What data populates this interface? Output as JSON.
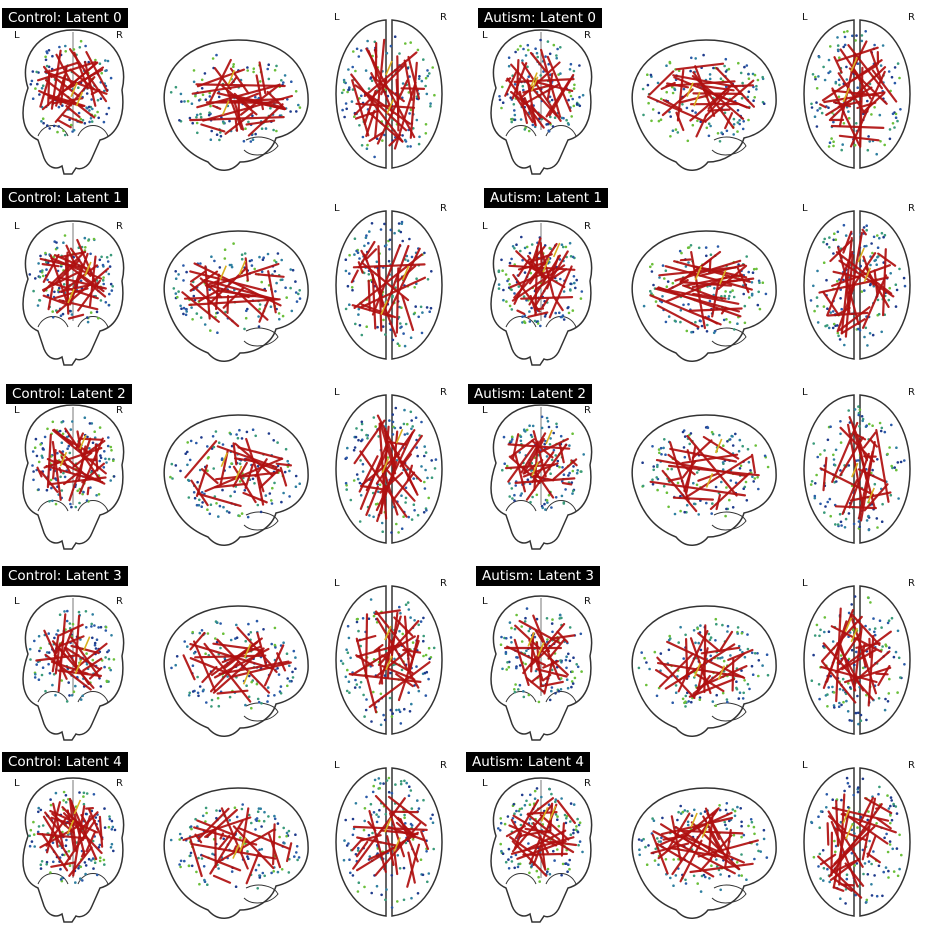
{
  "figure": {
    "panels": [
      {
        "group": "Control",
        "latent": 0,
        "title": "Control: Latent 0"
      },
      {
        "group": "Autism",
        "latent": 0,
        "title": "Autism: Latent 0"
      },
      {
        "group": "Control",
        "latent": 1,
        "title": "Control: Latent 1"
      },
      {
        "group": "Autism",
        "latent": 1,
        "title": "Autism: Latent 1"
      },
      {
        "group": "Control",
        "latent": 2,
        "title": "Control: Latent 2"
      },
      {
        "group": "Autism",
        "latent": 2,
        "title": "Autism: Latent 2"
      },
      {
        "group": "Control",
        "latent": 3,
        "title": "Control: Latent 3"
      },
      {
        "group": "Autism",
        "latent": 3,
        "title": "Autism: Latent 3"
      },
      {
        "group": "Control",
        "latent": 4,
        "title": "Control: Latent 4"
      },
      {
        "group": "Autism",
        "latent": 4,
        "title": "Autism: Latent 4"
      }
    ],
    "views": [
      "coronal",
      "sagittal",
      "axial"
    ],
    "hemisphere_labels": {
      "left": "L",
      "right": "R"
    },
    "colors": {
      "edge": "#b01010",
      "edge_highlight": "#d8b020",
      "outline": "#333333",
      "node_colors": [
        "#1f3b8c",
        "#2a5aa8",
        "#2f7fa0",
        "#3a9a7a",
        "#6abf3a"
      ]
    }
  }
}
